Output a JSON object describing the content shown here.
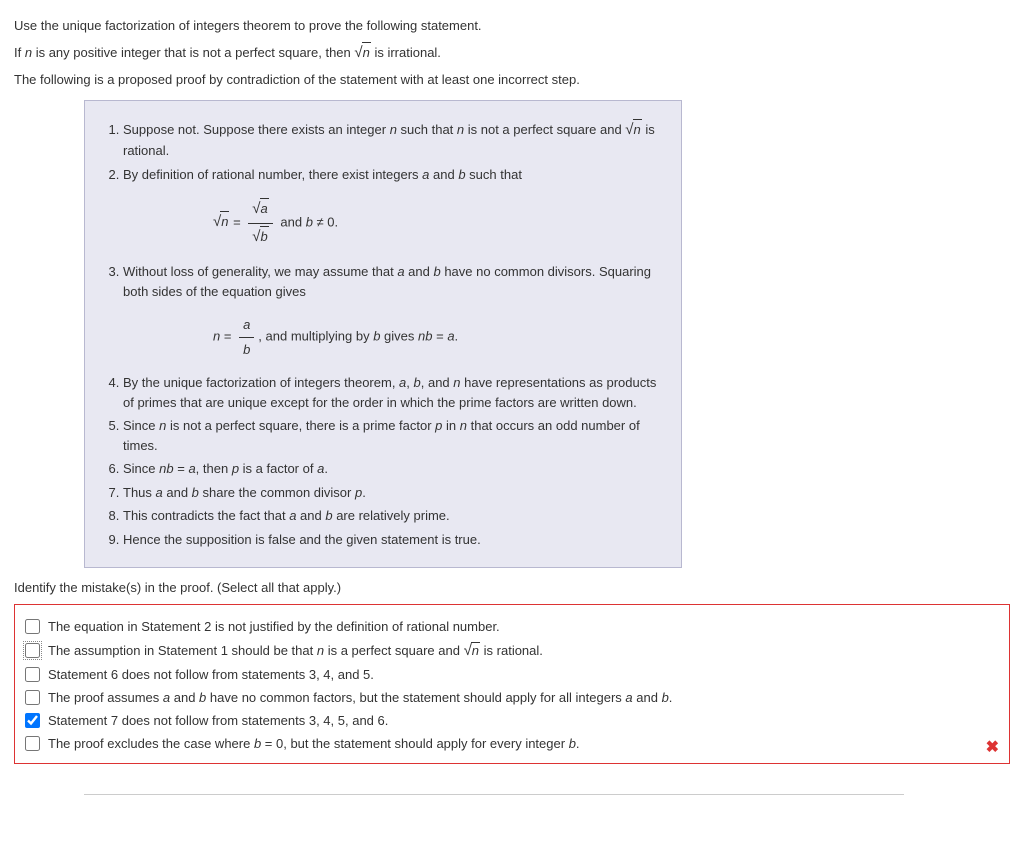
{
  "intro": {
    "line1": "Use the unique factorization of integers theorem to prove the following statement.",
    "line2_a": "If ",
    "line2_b": " is any positive integer that is not a perfect square, then ",
    "line2_c": " is irrational.",
    "line3": "The following is a proposed proof by contradiction of the statement with at least one incorrect step."
  },
  "var": {
    "n": "n",
    "a": "a",
    "b": "b",
    "p": "p"
  },
  "proof": {
    "s1a": "Suppose not. Suppose there exists an integer ",
    "s1b": " such that ",
    "s1c": " is not a perfect square and ",
    "s1d": " is rational.",
    "s2a": "By definition of rational number, there exist integers ",
    "s2b": " and ",
    "s2c": " such that",
    "eq1_and": " and ",
    "eq1_rhs": " ≠ 0.",
    "s3a": "Without loss of generality, we may assume that ",
    "s3b": " and ",
    "s3c": " have no common divisors. Squaring both sides of the equation gives",
    "eq2_pre": " = ",
    "eq2_mid": ", and multiplying by ",
    "eq2_gives": " gives ",
    "eq2_eq": "nb",
    "eq2_rhs": " = ",
    "eq2_end": ".",
    "s4a": "By the unique factorization of integers theorem, ",
    "s4b": ", ",
    "s4c": ", and ",
    "s4d": " have representations as products of primes that are unique except for the order in which the prime factors are written down.",
    "s5a": "Since ",
    "s5b": " is not a perfect square, there is a prime factor ",
    "s5c": " in ",
    "s5d": " that occurs an odd number of times.",
    "s6a": "Since ",
    "s6b": "nb",
    "s6c": " = ",
    "s6d": ", then ",
    "s6e": " is a factor of ",
    "s6f": ".",
    "s7a": "Thus ",
    "s7b": " and ",
    "s7c": " share the common divisor ",
    "s7d": ".",
    "s8a": "This contradicts the fact that ",
    "s8b": " and ",
    "s8c": " are relatively prime.",
    "s9": "Hence the supposition is false and the given statement is true."
  },
  "question": "Identify the mistake(s) in the proof. (Select all that apply.)",
  "options": [
    {
      "checked": false,
      "focus": false,
      "pre": "The equation in Statement 2 is not justified by the definition of rational number.",
      "hasSqrt": false
    },
    {
      "checked": false,
      "focus": true,
      "pre": "The assumption in Statement 1 should be that ",
      "mid": " is a perfect square and ",
      "post": " is rational.",
      "hasSqrt": true
    },
    {
      "checked": false,
      "focus": false,
      "pre": "Statement 6 does not follow from statements 3, 4, and 5.",
      "hasSqrt": false
    },
    {
      "checked": false,
      "focus": false,
      "pre": "The proof assumes ",
      "a": "a",
      "and": " and ",
      "b": "b",
      "post": " have no common factors, but the statement should apply for all integers ",
      "a2": "a",
      "and2": " and ",
      "b2": "b",
      "end": ".",
      "hasSqrt": false,
      "ab": true
    },
    {
      "checked": true,
      "focus": false,
      "pre": "Statement 7 does not follow from statements 3, 4, 5, and 6.",
      "hasSqrt": false
    },
    {
      "checked": false,
      "focus": false,
      "pre": "The proof excludes the case where ",
      "b": "b",
      "mid": " = 0, but the statement should apply for every integer ",
      "b2": "b",
      "end": ".",
      "hasSqrt": false,
      "bOnly": true
    }
  ],
  "colors": {
    "box_bg": "#e8e8f2",
    "box_border": "#b8b8d0",
    "answer_border": "#d33",
    "x_color": "#d33"
  }
}
